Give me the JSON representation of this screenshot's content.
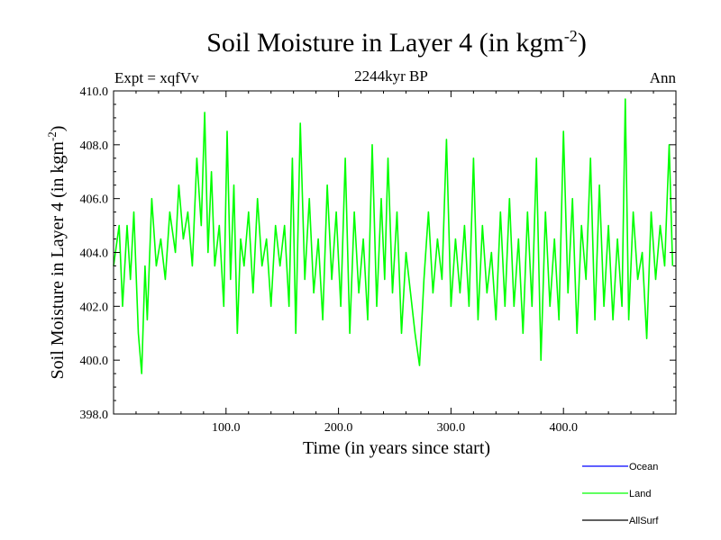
{
  "header": {
    "title_main": "Soil Moisture in Layer 4 (in kgm",
    "title_sup": "-2",
    "title_close": ")",
    "subtitle": "2244kyr BP",
    "left_label": "Expt = xqfVv",
    "right_label": "Ann"
  },
  "chart_data": {
    "type": "line",
    "title": "Soil Moisture in Layer 4 (in kgm-2)",
    "subtitle": "2244kyr BP",
    "xlabel": "Time (in years since start)",
    "ylabel": "Soil Moisture in Layer 4 (in kgm-2)",
    "xlim": [
      0,
      500
    ],
    "ylim": [
      398,
      410
    ],
    "xticks": [
      100,
      200,
      300,
      400
    ],
    "xtick_labels": [
      "100.0",
      "200.0",
      "300.0",
      "400.0"
    ],
    "yticks": [
      398,
      400,
      402,
      404,
      406,
      408,
      410
    ],
    "ytick_labels": [
      "398.0",
      "400.0",
      "402.0",
      "404.0",
      "406.0",
      "408.0",
      "410.0"
    ],
    "series": [
      {
        "name": "Ocean",
        "color": "#0000ff",
        "x": [],
        "y": []
      },
      {
        "name": "Land",
        "color": "#00ff00",
        "x": [
          0,
          5,
          8,
          12,
          15,
          18,
          22,
          25,
          28,
          30,
          34,
          38,
          42,
          46,
          50,
          55,
          58,
          62,
          66,
          70,
          74,
          78,
          81,
          84,
          87,
          90,
          94,
          98,
          101,
          104,
          107,
          110,
          113,
          116,
          120,
          124,
          128,
          132,
          136,
          140,
          144,
          148,
          152,
          156,
          159,
          162,
          166,
          170,
          174,
          178,
          182,
          186,
          190,
          194,
          198,
          202,
          206,
          210,
          214,
          218,
          222,
          226,
          230,
          234,
          238,
          241,
          244,
          248,
          252,
          256,
          260,
          264,
          268,
          272,
          276,
          280,
          284,
          288,
          292,
          296,
          300,
          304,
          308,
          312,
          316,
          320,
          324,
          328,
          332,
          336,
          340,
          344,
          348,
          352,
          356,
          360,
          364,
          368,
          372,
          376,
          380,
          384,
          388,
          392,
          396,
          400,
          404,
          408,
          412,
          416,
          420,
          424,
          428,
          432,
          436,
          440,
          444,
          448,
          452,
          455,
          458,
          462,
          466,
          470,
          474,
          478,
          482,
          486,
          490,
          494,
          497
        ],
        "y": [
          403.5,
          405.0,
          402.0,
          405.0,
          403.0,
          405.5,
          401.0,
          399.5,
          403.5,
          401.5,
          406.0,
          403.5,
          404.5,
          403.0,
          405.5,
          404.0,
          406.5,
          404.5,
          405.5,
          403.5,
          407.5,
          405.0,
          409.2,
          404.0,
          407.0,
          403.5,
          405.0,
          402.0,
          408.5,
          403.0,
          406.5,
          401.0,
          404.5,
          403.5,
          405.5,
          402.5,
          406.0,
          403.5,
          404.5,
          402.0,
          405.0,
          403.5,
          405.0,
          402.0,
          407.5,
          401.0,
          408.8,
          403.0,
          406.0,
          402.5,
          404.5,
          401.5,
          406.5,
          403.0,
          405.5,
          402.0,
          407.5,
          401.0,
          405.5,
          402.5,
          404.5,
          401.5,
          408.0,
          402.0,
          406.0,
          403.0,
          407.5,
          402.5,
          405.5,
          401.0,
          404.0,
          402.5,
          401.0,
          399.8,
          403.0,
          405.5,
          402.5,
          404.5,
          403.0,
          408.2,
          402.0,
          404.5,
          402.5,
          405.0,
          402.0,
          407.5,
          401.5,
          405.0,
          402.5,
          404.0,
          401.5,
          405.5,
          402.0,
          406.0,
          402.0,
          404.5,
          401.0,
          405.5,
          402.0,
          407.5,
          400.0,
          405.5,
          402.0,
          404.5,
          401.5,
          408.5,
          402.5,
          406.0,
          401.0,
          405.0,
          403.0,
          407.5,
          401.5,
          406.5,
          402.0,
          405.0,
          401.5,
          404.5,
          402.0,
          409.7,
          401.5,
          405.5,
          403.0,
          404.0,
          400.8,
          405.5,
          403.0,
          405.0,
          403.5,
          408.0,
          403.5
        ]
      },
      {
        "name": "AllSurf",
        "color": "#000000",
        "x": [],
        "y": []
      }
    ],
    "legend_position": "bottom-right"
  }
}
